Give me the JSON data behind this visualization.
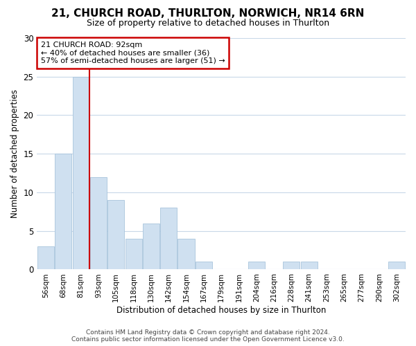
{
  "title1": "21, CHURCH ROAD, THURLTON, NORWICH, NR14 6RN",
  "title2": "Size of property relative to detached houses in Thurlton",
  "xlabel": "Distribution of detached houses by size in Thurlton",
  "ylabel": "Number of detached properties",
  "footer1": "Contains HM Land Registry data © Crown copyright and database right 2024.",
  "footer2": "Contains public sector information licensed under the Open Government Licence v3.0.",
  "annotation_line1": "21 CHURCH ROAD: 92sqm",
  "annotation_line2": "← 40% of detached houses are smaller (36)",
  "annotation_line3": "57% of semi-detached houses are larger (51) →",
  "bar_labels": [
    "56sqm",
    "68sqm",
    "81sqm",
    "93sqm",
    "105sqm",
    "118sqm",
    "130sqm",
    "142sqm",
    "154sqm",
    "167sqm",
    "179sqm",
    "191sqm",
    "204sqm",
    "216sqm",
    "228sqm",
    "241sqm",
    "253sqm",
    "265sqm",
    "277sqm",
    "290sqm",
    "302sqm"
  ],
  "bar_values": [
    3,
    15,
    25,
    12,
    9,
    4,
    6,
    8,
    4,
    1,
    0,
    0,
    1,
    0,
    1,
    1,
    0,
    0,
    0,
    0,
    1
  ],
  "bar_color": "#cfe0f0",
  "bar_edge_color": "#a8c4dc",
  "vline_color": "#cc0000",
  "annotation_box_color": "#cc0000",
  "background_color": "#ffffff",
  "grid_color": "#c8d8e8",
  "ylim": [
    0,
    30
  ],
  "yticks": [
    0,
    5,
    10,
    15,
    20,
    25,
    30
  ],
  "title1_fontsize": 11,
  "title2_fontsize": 9
}
